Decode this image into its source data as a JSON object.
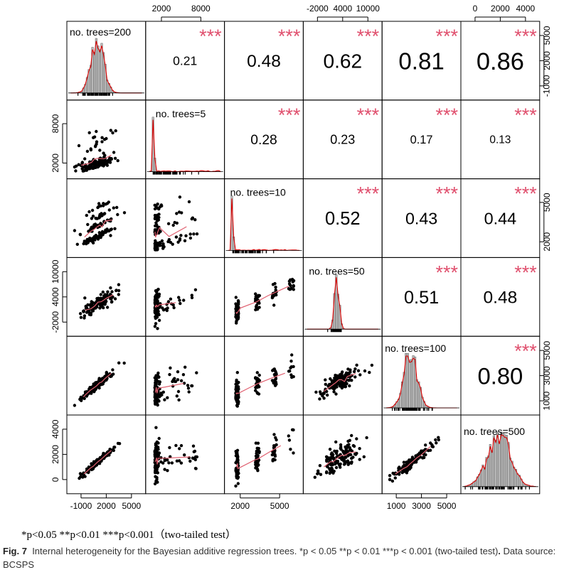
{
  "chart_data": {
    "type": "scatter-matrix",
    "variables": [
      "no. trees=200",
      "no. trees=5",
      "no. trees=10",
      "no. trees=50",
      "no. trees=100",
      "no. trees=500"
    ],
    "correlations": [
      {
        "row": 0,
        "col": 1,
        "r": "0.21",
        "sig": "***"
      },
      {
        "row": 0,
        "col": 2,
        "r": "0.48",
        "sig": "***"
      },
      {
        "row": 0,
        "col": 3,
        "r": "0.62",
        "sig": "***"
      },
      {
        "row": 0,
        "col": 4,
        "r": "0.81",
        "sig": "***"
      },
      {
        "row": 0,
        "col": 5,
        "r": "0.86",
        "sig": "***"
      },
      {
        "row": 1,
        "col": 2,
        "r": "0.28",
        "sig": "***"
      },
      {
        "row": 1,
        "col": 3,
        "r": "0.23",
        "sig": "***"
      },
      {
        "row": 1,
        "col": 4,
        "r": "0.17",
        "sig": "***"
      },
      {
        "row": 1,
        "col": 5,
        "r": "0.13",
        "sig": "***"
      },
      {
        "row": 2,
        "col": 3,
        "r": "0.52",
        "sig": "***"
      },
      {
        "row": 2,
        "col": 4,
        "r": "0.43",
        "sig": "***"
      },
      {
        "row": 2,
        "col": 5,
        "r": "0.44",
        "sig": "***"
      },
      {
        "row": 3,
        "col": 4,
        "r": "0.51",
        "sig": "***"
      },
      {
        "row": 3,
        "col": 5,
        "r": "0.48",
        "sig": "***"
      },
      {
        "row": 4,
        "col": 5,
        "r": "0.80",
        "sig": "***"
      }
    ],
    "axis_ticks": {
      "top": [
        {
          "col": 1,
          "labels": [
            "2000",
            "8000"
          ]
        },
        {
          "col": 3,
          "labels": [
            "-2000",
            "4000",
            "10000"
          ]
        },
        {
          "col": 5,
          "labels": [
            "0",
            "2000",
            "4000"
          ]
        }
      ],
      "bottom": [
        {
          "col": 0,
          "labels": [
            "-1000",
            "2000",
            "5000"
          ]
        },
        {
          "col": 2,
          "labels": [
            "2000",
            "5000"
          ]
        },
        {
          "col": 4,
          "labels": [
            "1000",
            "3000",
            "5000"
          ]
        }
      ],
      "left": [
        {
          "row": 1,
          "labels": [
            "2000",
            "8000"
          ]
        },
        {
          "row": 3,
          "labels": [
            "-2000",
            "4000",
            "10000"
          ]
        },
        {
          "row": 5,
          "labels": [
            "0",
            "2000",
            "4000"
          ]
        }
      ],
      "right": [
        {
          "row": 0,
          "labels": [
            "-1000",
            "2000",
            "5000"
          ]
        },
        {
          "row": 2,
          "labels": [
            "2000",
            "5000"
          ]
        },
        {
          "row": 4,
          "labels": [
            "1000",
            "3000",
            "5000"
          ]
        }
      ]
    },
    "colors": {
      "points": "#000000",
      "smooth": "#e06070",
      "density": "#dd0000",
      "stars": "#e0506e",
      "hist_fill": "#bbbbbb"
    }
  },
  "note": "*p<0.05 **p<0.01 ***p<0.001（two-tailed test）",
  "caption": {
    "fig_label": "Fig. 7",
    "text": "Internal heterogeneity for the Bayesian additive regression trees. *p < 0.05 **p < 0.01 ***p < 0.001 (two-tailed test)",
    "period": ".",
    "source": "Data source: BCSPS"
  }
}
